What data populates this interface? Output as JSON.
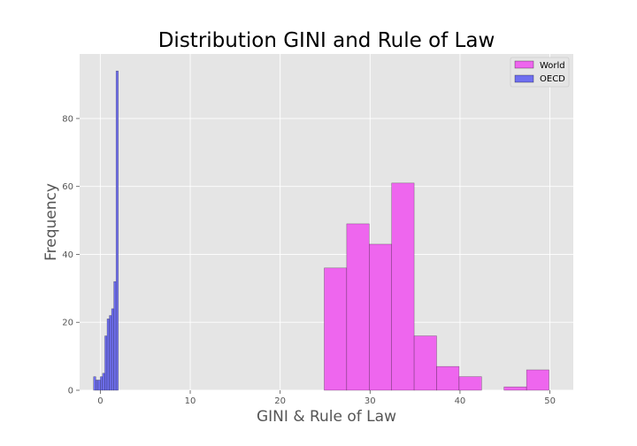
{
  "chart_data": {
    "type": "bar",
    "title": "Distribution GINI and Rule of Law",
    "xlabel": "GINI & Rule of Law",
    "ylabel": "Frequency",
    "xlim": [
      -2.3,
      52.6
    ],
    "ylim": [
      0,
      99
    ],
    "xticks": [
      0,
      10,
      20,
      30,
      40,
      50
    ],
    "yticks": [
      0,
      20,
      40,
      60,
      80
    ],
    "grid": true,
    "legend_position": "top-right",
    "series": [
      {
        "name": "World",
        "color": "#ee66ee",
        "bins": [
          {
            "x0": 24.9,
            "x1": 27.4,
            "count": 36
          },
          {
            "x0": 27.4,
            "x1": 29.9,
            "count": 49
          },
          {
            "x0": 29.9,
            "x1": 32.4,
            "count": 43
          },
          {
            "x0": 32.4,
            "x1": 34.9,
            "count": 61
          },
          {
            "x0": 34.9,
            "x1": 37.4,
            "count": 16
          },
          {
            "x0": 37.4,
            "x1": 39.9,
            "count": 7
          },
          {
            "x0": 39.9,
            "x1": 42.4,
            "count": 4
          },
          {
            "x0": 42.4,
            "x1": 44.9,
            "count": 0
          },
          {
            "x0": 44.9,
            "x1": 47.4,
            "count": 1
          },
          {
            "x0": 47.4,
            "x1": 49.9,
            "count": 6
          }
        ]
      },
      {
        "name": "OECD",
        "color": "#6f6ff0",
        "bins": [
          {
            "x0": -0.75,
            "x1": -0.5,
            "count": 4
          },
          {
            "x0": -0.5,
            "x1": -0.25,
            "count": 3
          },
          {
            "x0": -0.25,
            "x1": 0.0,
            "count": 3
          },
          {
            "x0": 0.0,
            "x1": 0.25,
            "count": 4
          },
          {
            "x0": 0.25,
            "x1": 0.5,
            "count": 5
          },
          {
            "x0": 0.5,
            "x1": 0.75,
            "count": 16
          },
          {
            "x0": 0.75,
            "x1": 1.0,
            "count": 21
          },
          {
            "x0": 1.0,
            "x1": 1.25,
            "count": 22
          },
          {
            "x0": 1.25,
            "x1": 1.5,
            "count": 24
          },
          {
            "x0": 1.5,
            "x1": 1.75,
            "count": 32
          },
          {
            "x0": 1.75,
            "x1": 2.0,
            "count": 94
          }
        ]
      }
    ]
  }
}
